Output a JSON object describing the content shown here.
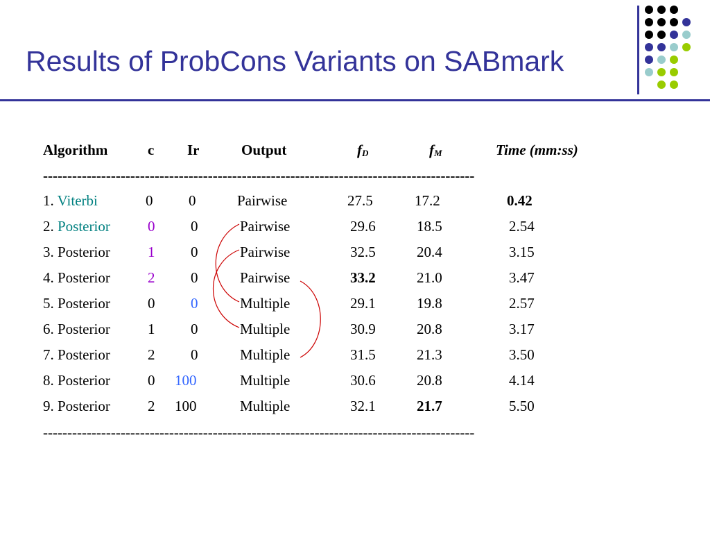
{
  "slide": {
    "title": "Results of ProbCons Variants on SABmark"
  },
  "colors": {
    "title": "#333399",
    "teal": "#008080",
    "purple": "#9900cc",
    "blue": "#3366ff",
    "arc": "#cc0000",
    "dot_black": "#000000",
    "dot_navy": "#333399",
    "dot_lightblue": "#99cccc",
    "dot_green": "#99cc00"
  },
  "table": {
    "headers": {
      "algorithm": "Algorithm",
      "c": "c",
      "ir": "Ir",
      "output": "Output",
      "fd_main": "f",
      "fd_sub": "D",
      "fm_main": "f",
      "fm_sub": "M",
      "time": "Time (mm:ss)"
    },
    "separator_top": "-----------------------------------------------------------------------------------------",
    "separator_bottom": "-----------------------------------------------------------------------------------------",
    "rows": [
      {
        "num": "1.",
        "alg": "Viterbi",
        "c": "0",
        "ir": "0",
        "output": "Pairwise",
        "fd": "27.5",
        "fm": "17.2",
        "time": "0.42"
      },
      {
        "num": "2.",
        "alg": "Posterior",
        "c": "0",
        "ir": "0",
        "output": "Pairwise",
        "fd": "29.6",
        "fm": "18.5",
        "time": "2.54"
      },
      {
        "num": "3.",
        "alg": "Posterior",
        "c": "1",
        "ir": "0",
        "output": "Pairwise",
        "fd": "32.5",
        "fm": "20.4",
        "time": "3.15"
      },
      {
        "num": "4.",
        "alg": "Posterior",
        "c": "2",
        "ir": "0",
        "output": "Pairwise",
        "fd": "33.2",
        "fm": "21.0",
        "time": "3.47"
      },
      {
        "num": "5.",
        "alg": "Posterior",
        "c": "0",
        "ir": "0",
        "output": "Multiple",
        "fd": "29.1",
        "fm": "19.8",
        "time": "2.57"
      },
      {
        "num": "6.",
        "alg": "Posterior",
        "c": "1",
        "ir": "0",
        "output": "Multiple",
        "fd": "30.9",
        "fm": "20.8",
        "time": "3.17"
      },
      {
        "num": "7.",
        "alg": "Posterior",
        "c": "2",
        "ir": "0",
        "output": "Multiple",
        "fd": "31.5",
        "fm": "21.3",
        "time": "3.50"
      },
      {
        "num": "8.",
        "alg": "Posterior",
        "c": "0",
        "ir": "100",
        "output": "Multiple",
        "fd": "30.6",
        "fm": "20.8",
        "time": "4.14"
      },
      {
        "num": "9.",
        "alg": "Posterior",
        "c": "2",
        "ir": "100",
        "output": "Multiple",
        "fd": "32.1",
        "fm": "21.7",
        "time": "5.50"
      }
    ]
  }
}
